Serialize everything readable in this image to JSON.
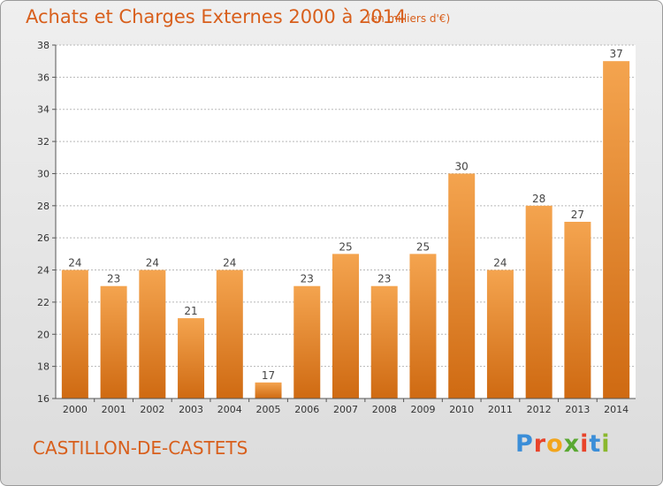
{
  "page": {
    "title": "Achats et Charges Externes 2000 à 2014",
    "subtitle": "(en milliers d'€)",
    "commune": "CASTILLON-DE-CASTETS",
    "logo": {
      "letters": [
        "P",
        "r",
        "o",
        "x",
        "i",
        "t",
        "i"
      ],
      "colors": [
        "#3b8ed8",
        "#e8432a",
        "#f2a51c",
        "#5aa832",
        "#e8432a",
        "#3b8ed8",
        "#8ab82e"
      ]
    }
  },
  "colors": {
    "bar_top": "#f4a44f",
    "bar_bottom": "#cf6a12",
    "grid": "#b8b8b8",
    "axis": "#555555",
    "plot_bg": "#ffffff"
  },
  "chart_data": {
    "type": "bar",
    "title": "Achats et Charges Externes 2000 à 2014",
    "subtitle": "(en milliers d'€)",
    "categories": [
      "2000",
      "2001",
      "2002",
      "2003",
      "2004",
      "2005",
      "2006",
      "2007",
      "2008",
      "2009",
      "2010",
      "2011",
      "2012",
      "2013",
      "2014"
    ],
    "values": [
      24,
      23,
      24,
      21,
      24,
      17,
      23,
      25,
      23,
      25,
      30,
      24,
      28,
      27,
      37
    ],
    "data_labels": [
      "24",
      "23",
      "24",
      "21",
      "24",
      "17",
      "23",
      "25",
      "23",
      "25",
      "30",
      "24",
      "28",
      "27",
      "37"
    ],
    "ylim": [
      16,
      38
    ],
    "yticks": [
      16,
      18,
      20,
      22,
      24,
      26,
      28,
      30,
      32,
      34,
      36,
      38
    ],
    "ytick_labels": [
      "16",
      "18",
      "20",
      "22",
      "24",
      "26",
      "28",
      "30",
      "32",
      "34",
      "36",
      "38"
    ],
    "xlabel": "",
    "ylabel": "",
    "grid": "horizontal dashed",
    "legend": "none"
  }
}
